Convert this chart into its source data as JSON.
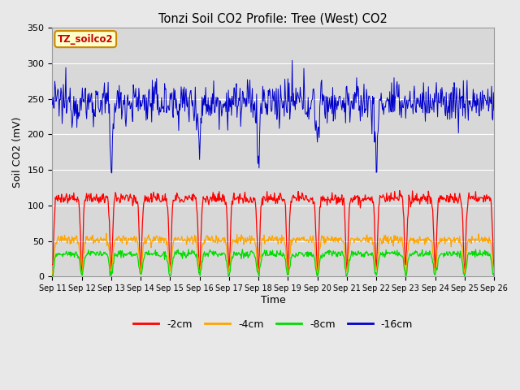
{
  "title": "Tonzi Soil CO2 Profile: Tree (West) CO2",
  "ylabel": "Soil CO2 (mV)",
  "xlabel": "Time",
  "ylim": [
    0,
    350
  ],
  "xlim": [
    0,
    360
  ],
  "x_ticks": [
    0,
    24,
    48,
    72,
    96,
    120,
    144,
    168,
    192,
    216,
    240,
    264,
    288,
    312,
    336,
    360
  ],
  "x_tick_labels": [
    "Sep 11",
    "Sep 12",
    "Sep 13",
    "Sep 14",
    "Sep 15",
    "Sep 16",
    "Sep 17",
    "Sep 18",
    "Sep 19",
    "Sep 20",
    "Sep 21",
    "Sep 22",
    "Sep 23",
    "Sep 24",
    "Sep 25",
    "Sep 26"
  ],
  "colors": {
    "red": "#ff0000",
    "orange": "#ffa500",
    "green": "#00dd00",
    "blue": "#0000cc"
  },
  "plot_bg_color": "#d8d8d8",
  "fig_bg_color": "#e8e8e8",
  "legend_label": "TZ_soilco2",
  "legend_box_color": "#ffffcc",
  "legend_box_edge": "#cc8800",
  "series_labels": [
    "-2cm",
    "-4cm",
    "-8cm",
    "-16cm"
  ]
}
